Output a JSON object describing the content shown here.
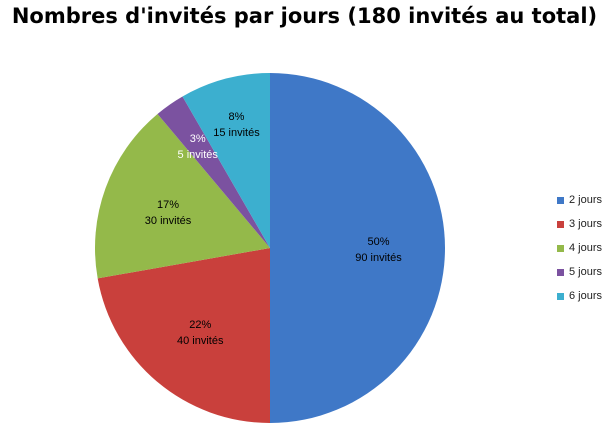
{
  "chart_data": {
    "type": "pie",
    "title": "Nombres d'invités par jours (180 invités au total)",
    "categories": [
      "2 jours",
      "3 jours",
      "4 jours",
      "5 jours",
      "6 jours"
    ],
    "values": [
      90,
      40,
      30,
      5,
      15
    ],
    "percent_labels": [
      "50%",
      "22%",
      "17%",
      "3%",
      "8%"
    ],
    "count_labels": [
      "90 invités",
      "40 invités",
      "30 invités",
      "5 invités",
      "15 invités"
    ],
    "colors": [
      "#3F78C7",
      "#C9403C",
      "#94B94A",
      "#7B52A0",
      "#3CAFCF"
    ],
    "label_colors": [
      "#000000",
      "#000000",
      "#000000",
      "#ffffff",
      "#000000"
    ],
    "legend_position": "right",
    "start_angle_deg": 0,
    "direction": "clockwise"
  }
}
